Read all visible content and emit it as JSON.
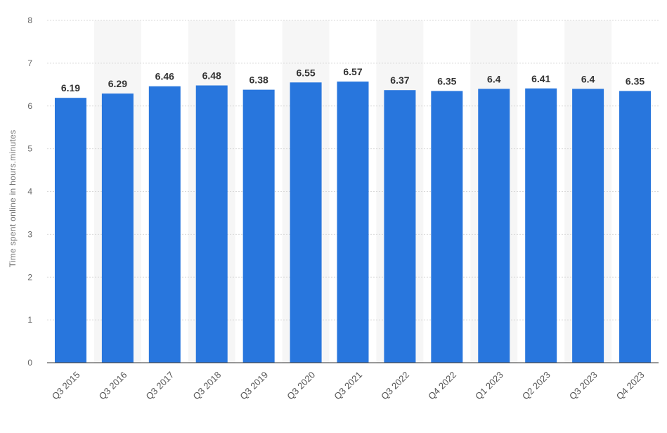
{
  "chart_data": {
    "type": "bar",
    "title": "",
    "xlabel": "",
    "ylabel": "Time spent online in hours.minutes",
    "ylim": [
      0,
      8
    ],
    "y_ticks": [
      0,
      1,
      2,
      3,
      4,
      5,
      6,
      7,
      8
    ],
    "grid": true,
    "legend": "none",
    "categories": [
      "Q3 2015",
      "Q3 2016",
      "Q3 2017",
      "Q3 2018",
      "Q3 2019",
      "Q3 2020",
      "Q3 2021",
      "Q3 2022",
      "Q4 2022",
      "Q1 2023",
      "Q2 2023",
      "Q3 2023",
      "Q4 2023"
    ],
    "values": [
      6.19,
      6.29,
      6.46,
      6.48,
      6.38,
      6.55,
      6.57,
      6.37,
      6.35,
      6.4,
      6.41,
      6.4,
      6.35
    ],
    "data_labels": [
      "6.19",
      "6.29",
      "6.46",
      "6.48",
      "6.38",
      "6.55",
      "6.57",
      "6.37",
      "6.35",
      "6.4",
      "6.41",
      "6.4",
      "6.35"
    ],
    "colors": {
      "bar": "#2876dd",
      "band": "#f6f6f6",
      "grid": "#d9d9d9",
      "axis": "#333333"
    }
  }
}
